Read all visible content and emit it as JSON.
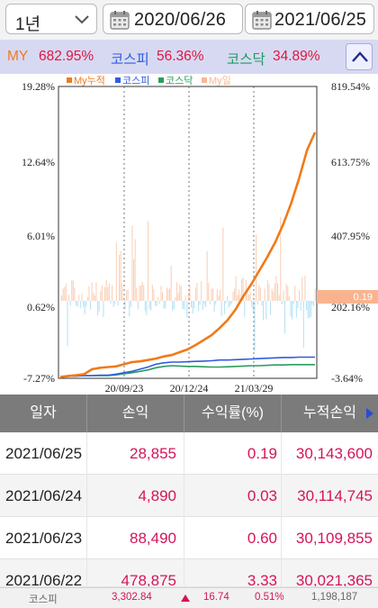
{
  "filter": {
    "period": "1년",
    "start_date": "2020/06/26",
    "separator": "~",
    "end_date": "2021/06/25"
  },
  "summary": {
    "my_label": "MY",
    "my_value": "682.95%",
    "kospi_label": "코스피",
    "kospi_value": "56.36%",
    "kosdaq_label": "코스닥",
    "kosdaq_value": "34.89%"
  },
  "chart_data": {
    "type": "line",
    "legend": [
      "My누적",
      "코스피",
      "코스닥",
      "My일"
    ],
    "legend_colors": [
      "#f07a1a",
      "#2e5de0",
      "#2a9d5e",
      "#f7b897"
    ],
    "left_axis_ticks": [
      "19.28%",
      "12.64%",
      "6.01%",
      "0.62%",
      "-7.27%"
    ],
    "right_axis_ticks": [
      "819.54%",
      "613.75%",
      "407.95%",
      "202.16%",
      "-3.64%"
    ],
    "x_ticks": [
      "20/09/23",
      "20/12/24",
      "21/03/29"
    ],
    "left_axis_range": [
      -7.27,
      19.28
    ],
    "right_axis_range": [
      -3.64,
      819.54
    ],
    "last_daily_value": "0.19",
    "series_my_cumulative": [
      0,
      3,
      5,
      8,
      22,
      26,
      28,
      30,
      36,
      42,
      44,
      48,
      52,
      58,
      62,
      70,
      78,
      90,
      104,
      118,
      138,
      160,
      190,
      228,
      262,
      300,
      338,
      380,
      430,
      490,
      560,
      640,
      690
    ],
    "series_kospi": [
      0,
      2,
      3,
      4,
      4,
      5,
      5,
      8,
      12,
      16,
      22,
      28,
      36,
      40,
      42,
      42,
      43,
      44,
      45,
      46,
      48,
      48,
      49,
      50,
      51,
      52,
      53,
      54,
      55,
      55,
      56,
      56,
      56
    ],
    "series_kosdaq": [
      0,
      2,
      3,
      4,
      4,
      4,
      4,
      6,
      9,
      12,
      16,
      20,
      26,
      30,
      32,
      31,
      30,
      30,
      29,
      28,
      28,
      29,
      30,
      31,
      32,
      32,
      33,
      34,
      34,
      35,
      35,
      35,
      35
    ]
  },
  "table": {
    "headers": [
      "일자",
      "손익",
      "수익률(%)",
      "누적손익"
    ],
    "rows": [
      {
        "date": "2021/06/25",
        "pl": "28,855",
        "ret": "0.19",
        "cum": "30,143,600"
      },
      {
        "date": "2021/06/24",
        "pl": "4,890",
        "ret": "0.03",
        "cum": "30,114,745"
      },
      {
        "date": "2021/06/23",
        "pl": "88,490",
        "ret": "0.60",
        "cum": "30,109,855"
      },
      {
        "date": "2021/06/22",
        "pl": "478,875",
        "ret": "3.33",
        "cum": "30,021,365"
      }
    ]
  },
  "ticker": {
    "name": "코스피",
    "index": "3,302.84",
    "change": "16.74",
    "percent": "0.51%",
    "volume": "1,198,187"
  }
}
